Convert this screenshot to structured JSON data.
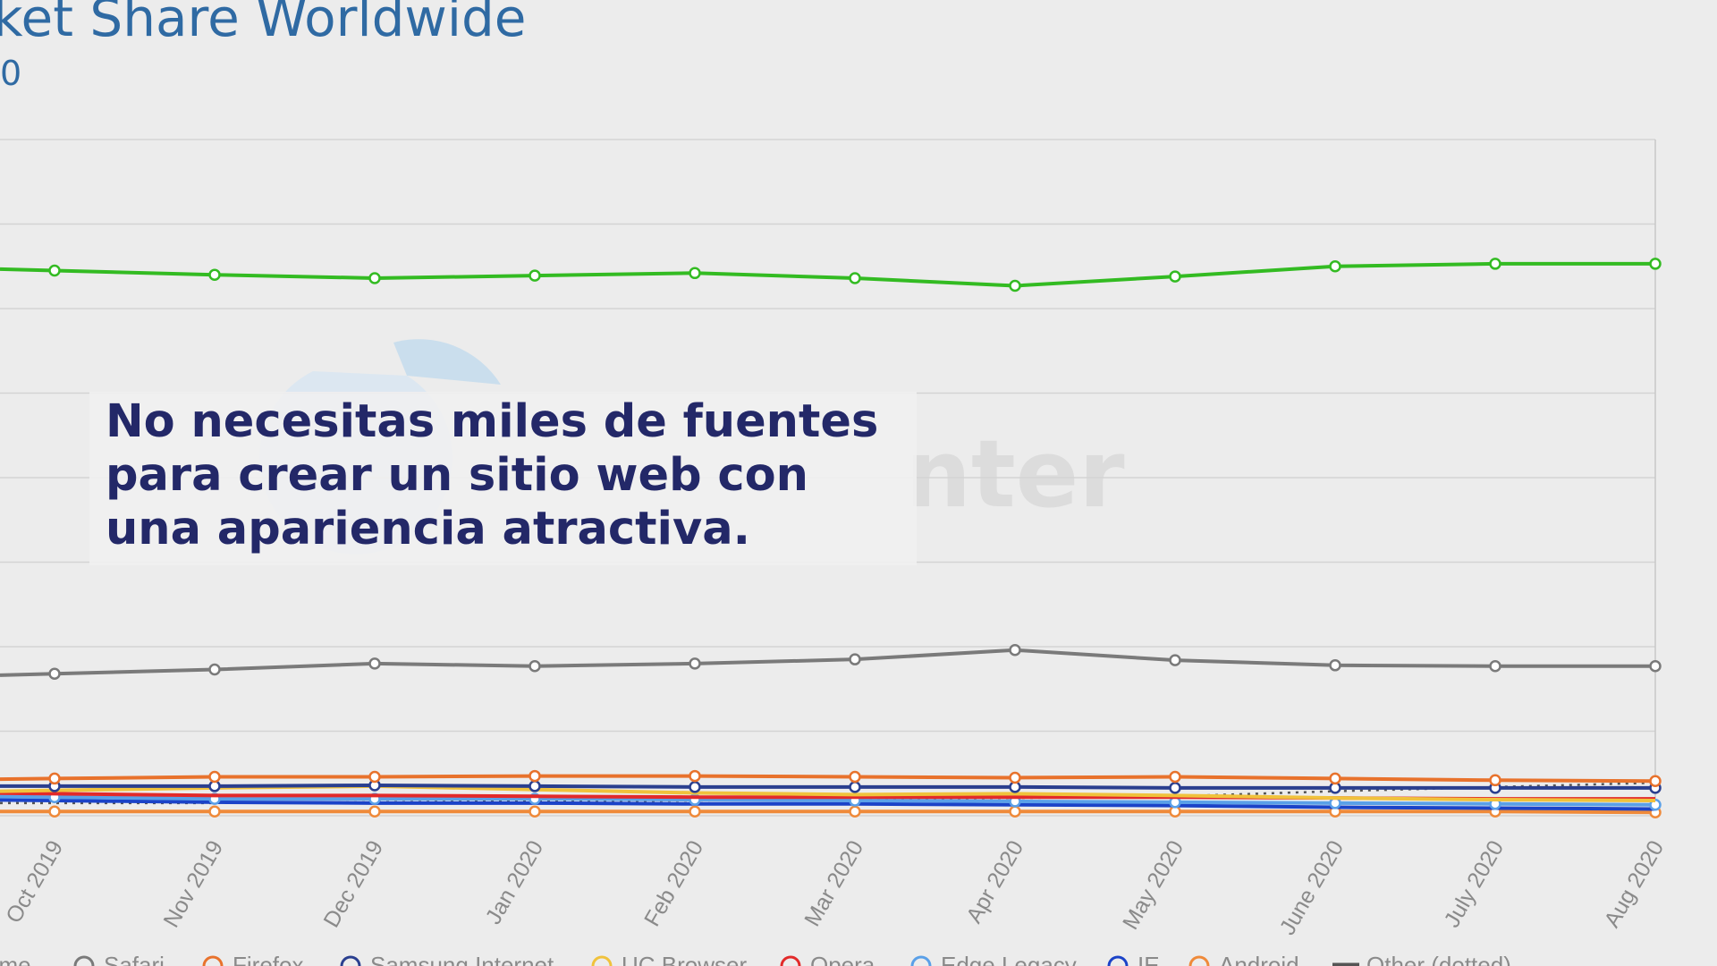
{
  "title": "ket Share Worldwide",
  "subtitle": "0",
  "watermark": "nter",
  "caption": "No necesitas miles de fuentes para crear un sitio web con una apariencia atractiva.",
  "colors": {
    "chrome": "#33bb22",
    "safari": "#7a7a7a",
    "firefox": "#e8722c",
    "samsung": "#2a3f8f",
    "uc": "#f0c23c",
    "opera": "#e22a2a",
    "edge_legacy": "#5aa0e8",
    "ie": "#1b43c8",
    "android": "#ef8a3a",
    "other": "#555555",
    "grid": "#d3d3d3",
    "title": "#2f6aa3",
    "caption_text": "#232868"
  },
  "chart_data": {
    "type": "line",
    "title": "ket Share Worldwide",
    "categories": [
      "Oct 2019",
      "Nov 2019",
      "Dec 2019",
      "Jan 2020",
      "Feb 2020",
      "Mar 2020",
      "Apr 2020",
      "May 2020",
      "June 2020",
      "July 2020",
      "Aug 2020"
    ],
    "ylim": [
      0,
      80
    ],
    "grid": true,
    "legend_position": "bottom",
    "series": [
      {
        "name": "Chrome",
        "color": "#33bb22",
        "marker": true,
        "dashed": false,
        "values": [
          64.5,
          64.0,
          63.6,
          63.9,
          64.2,
          63.6,
          62.7,
          63.8,
          65.0,
          65.3,
          65.3
        ]
      },
      {
        "name": "Safari",
        "color": "#7a7a7a",
        "marker": true,
        "dashed": false,
        "values": [
          16.8,
          17.3,
          18.0,
          17.7,
          18.0,
          18.5,
          19.6,
          18.4,
          17.8,
          17.7,
          17.7
        ]
      },
      {
        "name": "Firefox",
        "color": "#e8722c",
        "marker": true,
        "dashed": false,
        "values": [
          4.4,
          4.6,
          4.6,
          4.7,
          4.7,
          4.6,
          4.5,
          4.6,
          4.4,
          4.2,
          4.1
        ]
      },
      {
        "name": "Samsung Internet",
        "color": "#2a3f8f",
        "marker": true,
        "dashed": false,
        "values": [
          3.5,
          3.5,
          3.6,
          3.5,
          3.4,
          3.4,
          3.4,
          3.3,
          3.3,
          3.3,
          3.3
        ]
      },
      {
        "name": "UC Browser",
        "color": "#f0c23c",
        "marker": false,
        "dashed": false,
        "values": [
          3.0,
          3.3,
          3.5,
          3.1,
          2.7,
          2.5,
          2.6,
          2.4,
          2.1,
          1.9,
          1.8
        ]
      },
      {
        "name": "Opera",
        "color": "#e22a2a",
        "marker": false,
        "dashed": false,
        "values": [
          2.6,
          2.4,
          2.4,
          2.3,
          2.2,
          2.2,
          2.2,
          2.2,
          2.1,
          2.0,
          2.0
        ]
      },
      {
        "name": "Edge Legacy",
        "color": "#5aa0e8",
        "marker": true,
        "dashed": false,
        "values": [
          2.2,
          2.0,
          2.0,
          2.0,
          1.9,
          1.8,
          1.7,
          1.6,
          1.5,
          1.4,
          1.3
        ]
      },
      {
        "name": "IE",
        "color": "#1b43c8",
        "marker": false,
        "dashed": false,
        "values": [
          1.8,
          1.6,
          1.5,
          1.5,
          1.4,
          1.4,
          1.3,
          1.2,
          1.0,
          0.9,
          0.8
        ]
      },
      {
        "name": "Android",
        "color": "#ef8a3a",
        "marker": true,
        "dashed": false,
        "values": [
          0.5,
          0.5,
          0.5,
          0.5,
          0.5,
          0.5,
          0.5,
          0.5,
          0.5,
          0.5,
          0.4
        ]
      },
      {
        "name": "Other (dotted)",
        "color": "#555555",
        "marker": false,
        "dashed": true,
        "values": [
          1.5,
          1.5,
          1.6,
          1.7,
          1.8,
          2.0,
          2.1,
          2.3,
          2.9,
          3.4,
          3.9
        ]
      }
    ],
    "legend": [
      "ome",
      "Safari",
      "Firefox",
      "Samsung Internet",
      "UC Browser",
      "Opera",
      "Edge Legacy",
      "IE",
      "Android",
      "Other (dotted)"
    ]
  }
}
